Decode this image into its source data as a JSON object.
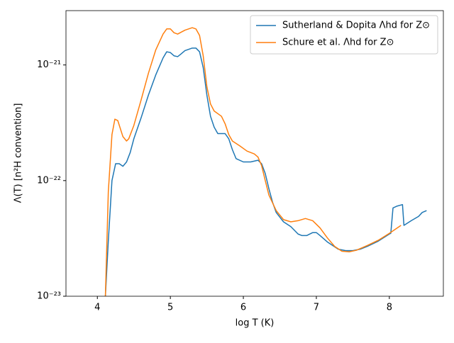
{
  "chart_data": {
    "type": "line",
    "xlabel": "log T (K)",
    "ylabel": "Λ(T) [n²H convention]",
    "log_y": true,
    "legend": "upper right",
    "xlim": [
      3.57,
      8.74
    ],
    "ylim": [
      1e-23,
      2.95e-21
    ],
    "xticks": [
      4,
      5,
      6,
      7,
      8
    ],
    "yticks": [
      {
        "value": 1e-23,
        "label": "10⁻²³"
      },
      {
        "value": 1e-22,
        "label": "10⁻²²"
      },
      {
        "value": 1e-21,
        "label": "10⁻²¹"
      }
    ],
    "series": [
      {
        "name": "Sutherland & Dopita Λhd for Z⊙",
        "color": "#1f77b4",
        "x": [
          4.11,
          4.15,
          4.2,
          4.25,
          4.3,
          4.35,
          4.4,
          4.45,
          4.5,
          4.6,
          4.7,
          4.8,
          4.9,
          4.95,
          5.0,
          5.05,
          5.1,
          5.15,
          5.2,
          5.3,
          5.35,
          5.4,
          5.45,
          5.5,
          5.55,
          5.6,
          5.65,
          5.75,
          5.8,
          5.85,
          5.9,
          6.0,
          6.1,
          6.2,
          6.25,
          6.3,
          6.35,
          6.4,
          6.45,
          6.55,
          6.65,
          6.75,
          6.8,
          6.87,
          6.95,
          7.0,
          7.05,
          7.15,
          7.3,
          7.4,
          7.5,
          7.6,
          7.7,
          7.85,
          8.0,
          8.02,
          8.05,
          8.1,
          8.18,
          8.2,
          8.3,
          8.4,
          8.45,
          8.51
        ],
        "values": [
          1e-23,
          3e-23,
          1e-22,
          1.4e-22,
          1.4e-22,
          1.33e-22,
          1.45e-22,
          1.75e-22,
          2.3e-22,
          3.5e-22,
          5.5e-22,
          8.2e-22,
          1.15e-21,
          1.3e-21,
          1.28e-21,
          1.2e-21,
          1.18e-21,
          1.25e-21,
          1.33e-21,
          1.4e-21,
          1.4e-21,
          1.3e-21,
          9.5e-22,
          5.5e-22,
          3.6e-22,
          2.9e-22,
          2.55e-22,
          2.55e-22,
          2.3e-22,
          1.85e-22,
          1.55e-22,
          1.45e-22,
          1.45e-22,
          1.5e-22,
          1.4e-22,
          1.15e-22,
          8.5e-23,
          6.5e-23,
          5.3e-23,
          4.4e-23,
          4e-23,
          3.45e-23,
          3.35e-23,
          3.35e-23,
          3.55e-23,
          3.55e-23,
          3.35e-23,
          2.95e-23,
          2.55e-23,
          2.48e-23,
          2.48e-23,
          2.55e-23,
          2.7e-23,
          3e-23,
          3.45e-23,
          3.5e-23,
          5.8e-23,
          6e-23,
          6.2e-23,
          4.1e-23,
          4.5e-23,
          4.9e-23,
          5.3e-23,
          5.5e-23
        ]
      },
      {
        "name": "Schure et al. Λhd for Z⊙",
        "color": "#ff7f0e",
        "x": [
          4.11,
          4.15,
          4.2,
          4.24,
          4.28,
          4.35,
          4.4,
          4.43,
          4.5,
          4.6,
          4.7,
          4.8,
          4.9,
          4.95,
          5.0,
          5.05,
          5.1,
          5.2,
          5.3,
          5.35,
          5.4,
          5.45,
          5.5,
          5.55,
          5.6,
          5.7,
          5.75,
          5.8,
          5.85,
          5.95,
          6.05,
          6.15,
          6.2,
          6.25,
          6.3,
          6.35,
          6.45,
          6.55,
          6.65,
          6.75,
          6.85,
          6.95,
          7.05,
          7.15,
          7.25,
          7.35,
          7.45,
          7.55,
          7.7,
          7.85,
          8.0,
          8.16
        ],
        "values": [
          1e-23,
          8e-23,
          2.5e-22,
          3.4e-22,
          3.3e-22,
          2.4e-22,
          2.2e-22,
          2.3e-22,
          3e-22,
          5e-22,
          8.5e-22,
          1.35e-21,
          1.85e-21,
          2.05e-21,
          2.05e-21,
          1.9e-21,
          1.85e-21,
          2e-21,
          2.1e-21,
          2.05e-21,
          1.8e-21,
          1.2e-21,
          6.5e-22,
          4.6e-22,
          4e-22,
          3.6e-22,
          3.1e-22,
          2.5e-22,
          2.2e-22,
          2e-22,
          1.8e-22,
          1.7e-22,
          1.6e-22,
          1.35e-22,
          1e-22,
          7.5e-23,
          5.5e-23,
          4.6e-23,
          4.4e-23,
          4.5e-23,
          4.7e-23,
          4.5e-23,
          3.9e-23,
          3.2e-23,
          2.7e-23,
          2.45e-23,
          2.42e-23,
          2.5e-23,
          2.75e-23,
          3.05e-23,
          3.5e-23,
          4.1e-23
        ]
      }
    ]
  }
}
